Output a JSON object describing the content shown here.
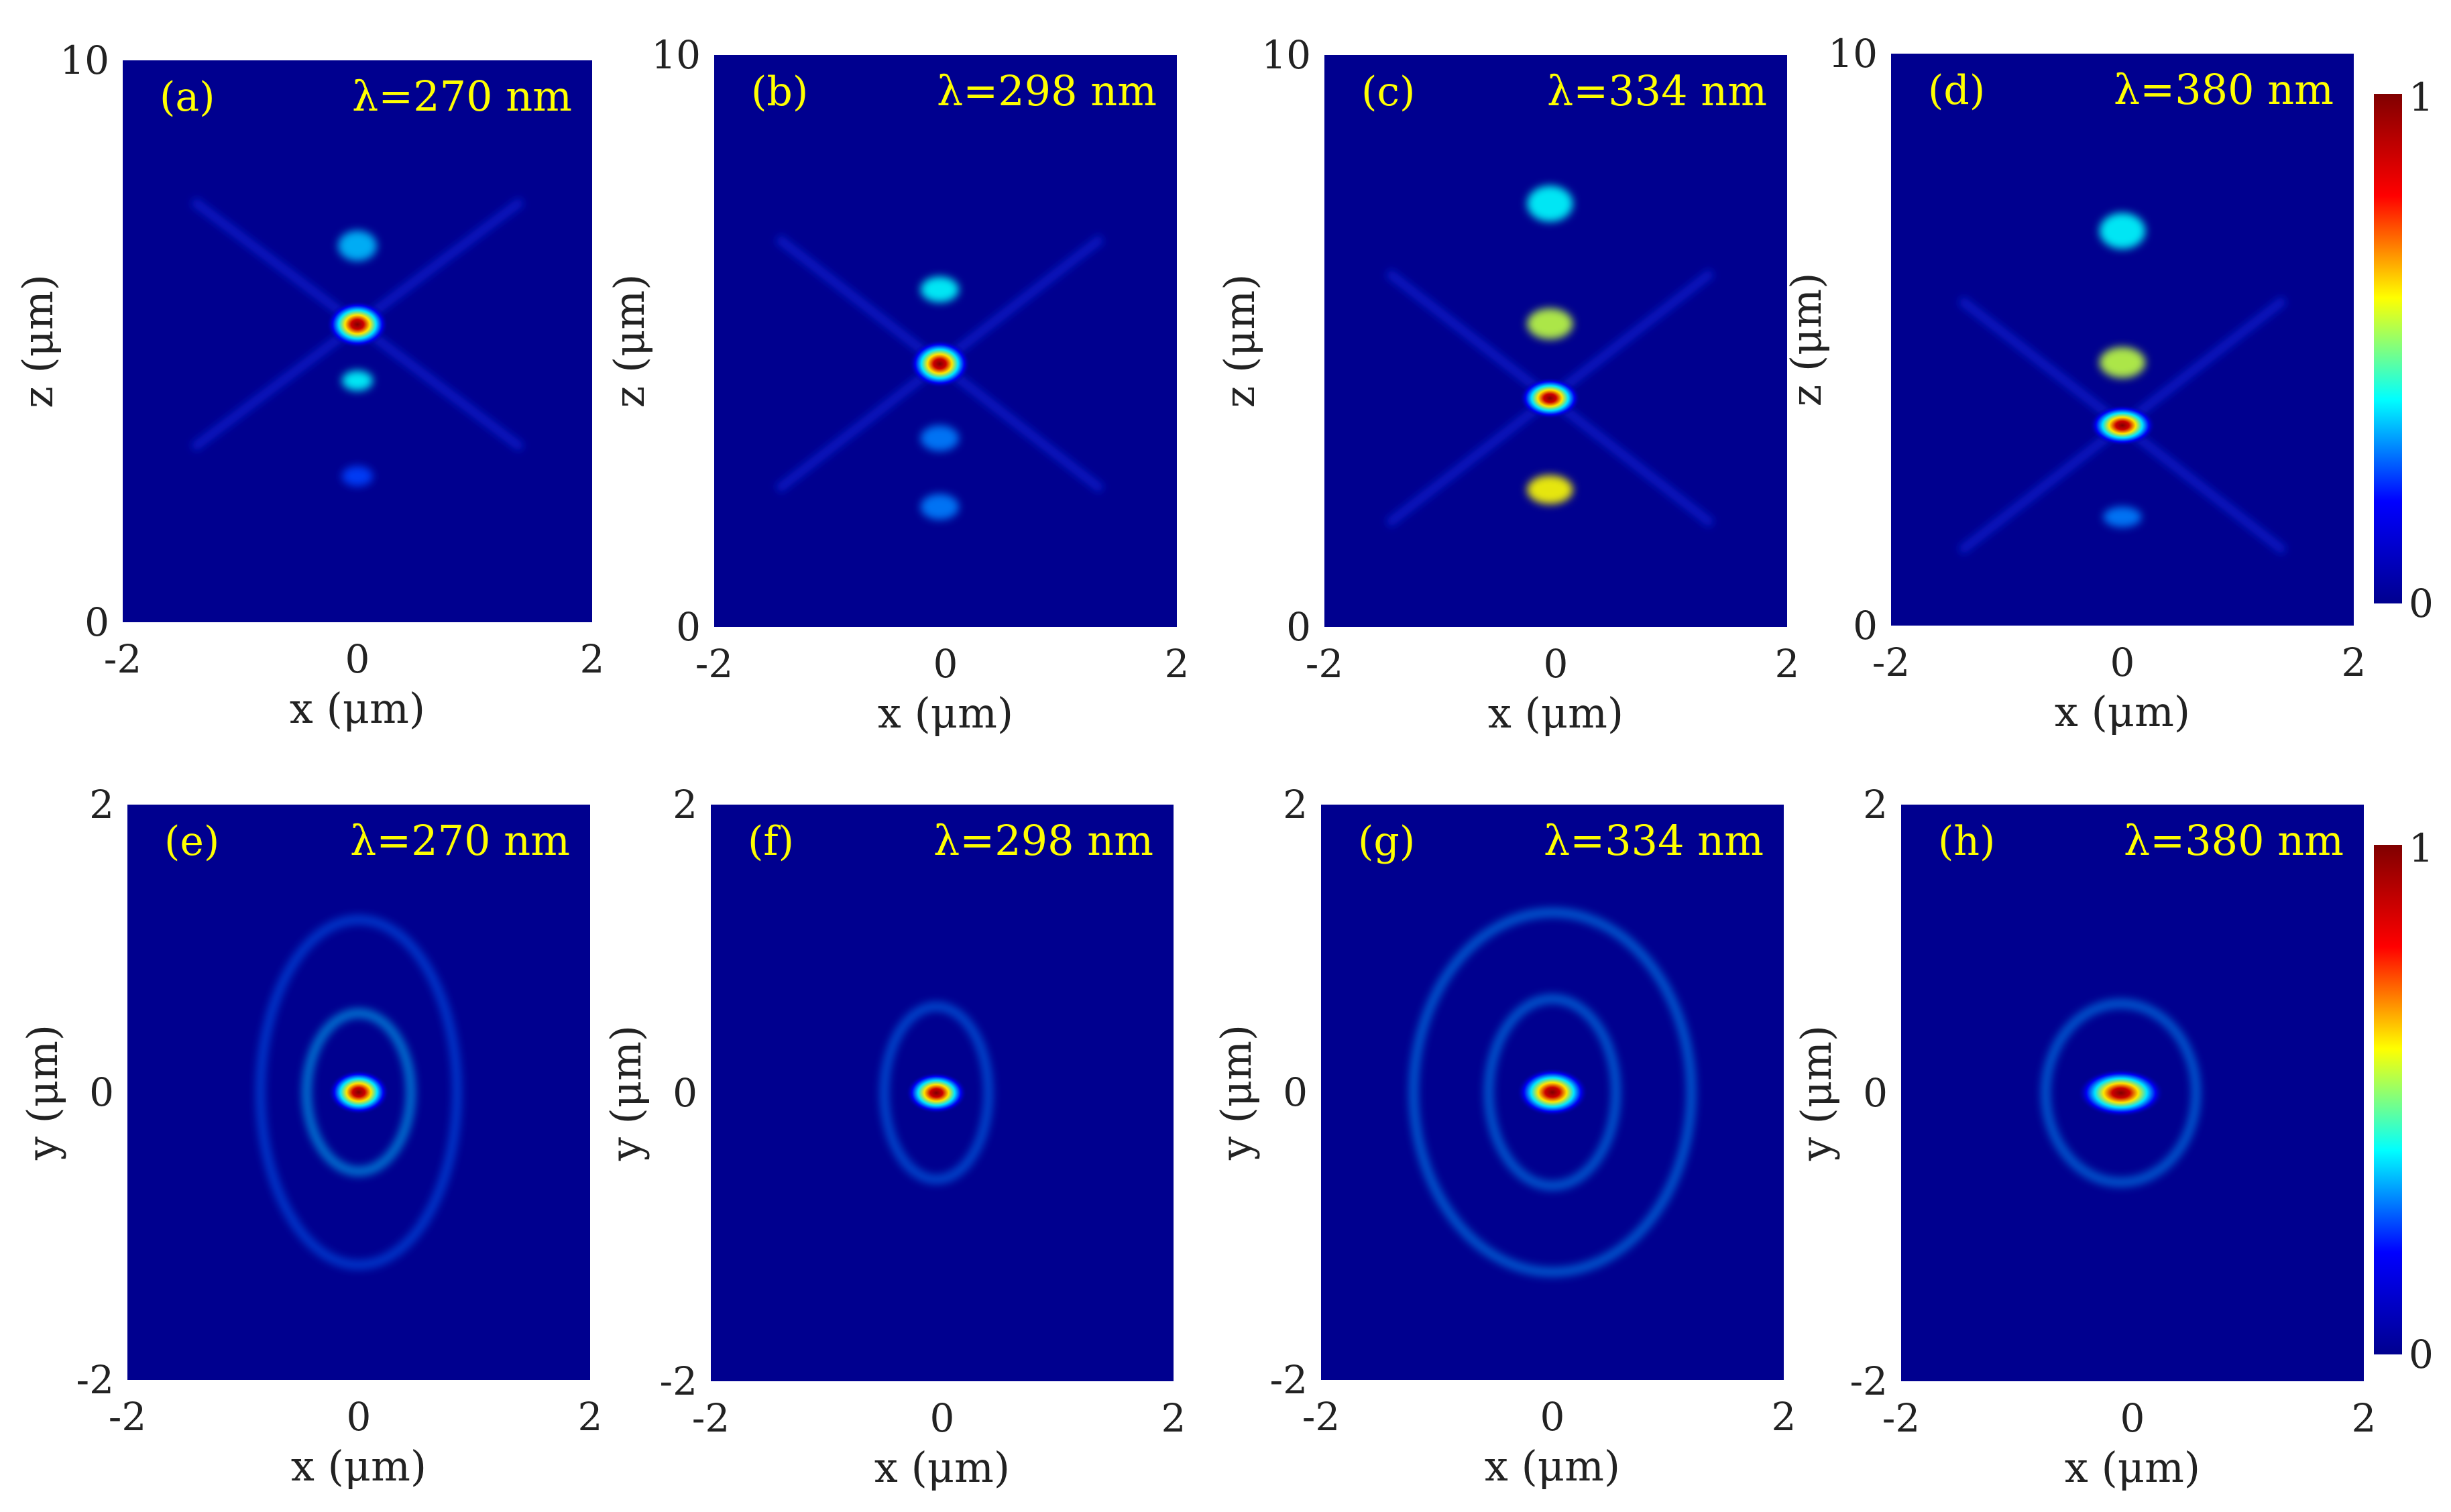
{
  "figure_title": "",
  "colormap": {
    "stops": [
      "#00008f",
      "#0000ff",
      "#00ffff",
      "#ffff00",
      "#ff0000",
      "#800000"
    ],
    "background_color": "#00008f",
    "label_color": "#ffff00"
  },
  "colorbars": [
    {
      "min_label": "0",
      "max_label": "1"
    },
    {
      "min_label": "0",
      "max_label": "1"
    }
  ],
  "chart_data": [
    {
      "type": "heatmap",
      "panel": "(a)",
      "wavelength_label": "λ=270 nm",
      "xlabel": "x (μm)",
      "ylabel": "z (μm)",
      "xlim": [
        -2,
        2
      ],
      "ylim": [
        0,
        10
      ],
      "xticks": [
        "-2",
        "0",
        "2"
      ],
      "yticks": [
        "0",
        "10"
      ],
      "peaks": [
        {
          "x": 0.0,
          "y": 5.3,
          "intensity": 1.0,
          "sx": 0.12,
          "sy": 0.35
        },
        {
          "x": 0.0,
          "y": 6.7,
          "intensity": 0.25,
          "sx": 0.1,
          "sy": 0.3
        },
        {
          "x": 0.0,
          "y": 4.3,
          "intensity": 0.3,
          "sx": 0.08,
          "sy": 0.2
        },
        {
          "x": 0.0,
          "y": 2.6,
          "intensity": 0.15,
          "sx": 0.08,
          "sy": 0.2
        }
      ],
      "rings": []
    },
    {
      "type": "heatmap",
      "panel": "(b)",
      "wavelength_label": "λ=298 nm",
      "xlabel": "x (μm)",
      "ylabel": "z (μm)",
      "xlim": [
        -2,
        2
      ],
      "ylim": [
        0,
        10
      ],
      "xticks": [
        "-2",
        "0",
        "2"
      ],
      "yticks": [
        "0",
        "10"
      ],
      "peaks": [
        {
          "x": -0.05,
          "y": 4.6,
          "intensity": 1.0,
          "sx": 0.12,
          "sy": 0.35
        },
        {
          "x": -0.05,
          "y": 5.9,
          "intensity": 0.3,
          "sx": 0.1,
          "sy": 0.25
        },
        {
          "x": -0.05,
          "y": 3.3,
          "intensity": 0.2,
          "sx": 0.1,
          "sy": 0.25
        },
        {
          "x": -0.05,
          "y": 2.1,
          "intensity": 0.2,
          "sx": 0.1,
          "sy": 0.25
        }
      ],
      "rings": []
    },
    {
      "type": "heatmap",
      "panel": "(c)",
      "wavelength_label": "λ=334 nm",
      "xlabel": "x (μm)",
      "ylabel": "z (μm)",
      "xlim": [
        -2,
        2
      ],
      "ylim": [
        0,
        10
      ],
      "xticks": [
        "-2",
        "0",
        "2"
      ],
      "yticks": [
        "0",
        "10"
      ],
      "peaks": [
        {
          "x": -0.05,
          "y": 4.0,
          "intensity": 1.0,
          "sx": 0.12,
          "sy": 0.3
        },
        {
          "x": -0.05,
          "y": 5.3,
          "intensity": 0.45,
          "sx": 0.12,
          "sy": 0.3
        },
        {
          "x": -0.05,
          "y": 7.4,
          "intensity": 0.3,
          "sx": 0.12,
          "sy": 0.35
        },
        {
          "x": -0.05,
          "y": 2.4,
          "intensity": 0.5,
          "sx": 0.12,
          "sy": 0.28
        }
      ],
      "rings": []
    },
    {
      "type": "heatmap",
      "panel": "(d)",
      "wavelength_label": "λ=380 nm",
      "xlabel": "x (μm)",
      "ylabel": "z (μm)",
      "xlim": [
        -2,
        2
      ],
      "ylim": [
        0,
        10
      ],
      "xticks": [
        "-2",
        "0",
        "2"
      ],
      "yticks": [
        "0",
        "10"
      ],
      "peaks": [
        {
          "x": 0.0,
          "y": 3.5,
          "intensity": 1.0,
          "sx": 0.13,
          "sy": 0.3
        },
        {
          "x": 0.0,
          "y": 4.6,
          "intensity": 0.45,
          "sx": 0.12,
          "sy": 0.3
        },
        {
          "x": 0.0,
          "y": 6.9,
          "intensity": 0.3,
          "sx": 0.12,
          "sy": 0.35
        },
        {
          "x": 0.0,
          "y": 1.9,
          "intensity": 0.2,
          "sx": 0.1,
          "sy": 0.2
        }
      ],
      "rings": []
    },
    {
      "type": "heatmap",
      "panel": "(e)",
      "wavelength_label": "λ=270 nm",
      "xlabel": "x (μm)",
      "ylabel": "y (μm)",
      "xlim": [
        -2,
        2
      ],
      "ylim": [
        -2,
        2
      ],
      "xticks": [
        "-2",
        "0",
        "2"
      ],
      "yticks": [
        "-2",
        "0",
        "2"
      ],
      "peaks": [
        {
          "x": 0.0,
          "y": 0.0,
          "intensity": 1.0,
          "sx": 0.12,
          "sy": 0.13
        }
      ],
      "rings": [
        {
          "rx": 0.45,
          "ry": 0.55,
          "intensity": 0.15
        },
        {
          "rx": 0.85,
          "ry": 1.2,
          "intensity": 0.08
        }
      ]
    },
    {
      "type": "heatmap",
      "panel": "(f)",
      "wavelength_label": "λ=298 nm",
      "xlabel": "x (μm)",
      "ylabel": "y (μm)",
      "xlim": [
        -2,
        2
      ],
      "ylim": [
        -2,
        2
      ],
      "xticks": [
        "-2",
        "0",
        "2"
      ],
      "yticks": [
        "-2",
        "0",
        "2"
      ],
      "peaks": [
        {
          "x": -0.05,
          "y": 0.0,
          "intensity": 1.0,
          "sx": 0.12,
          "sy": 0.12
        }
      ],
      "rings": [
        {
          "rx": 0.45,
          "ry": 0.6,
          "intensity": 0.1
        }
      ]
    },
    {
      "type": "heatmap",
      "panel": "(g)",
      "wavelength_label": "λ=334 nm",
      "xlabel": "x (μm)",
      "ylabel": "y (μm)",
      "xlim": [
        -2,
        2
      ],
      "ylim": [
        -2,
        2
      ],
      "xticks": [
        "-2",
        "0",
        "2"
      ],
      "yticks": [
        "-2",
        "0",
        "2"
      ],
      "peaks": [
        {
          "x": 0.0,
          "y": 0.0,
          "intensity": 1.0,
          "sx": 0.14,
          "sy": 0.14
        }
      ],
      "rings": [
        {
          "rx": 0.55,
          "ry": 0.65,
          "intensity": 0.12
        },
        {
          "rx": 1.2,
          "ry": 1.25,
          "intensity": 0.12
        }
      ]
    },
    {
      "type": "heatmap",
      "panel": "(h)",
      "wavelength_label": "λ=380 nm",
      "xlabel": "x (μm)",
      "ylabel": "y (μm)",
      "xlim": [
        -2,
        2
      ],
      "ylim": [
        -2,
        2
      ],
      "xticks": [
        "-2",
        "0",
        "2"
      ],
      "yticks": [
        "-2",
        "0",
        "2"
      ],
      "peaks": [
        {
          "x": -0.1,
          "y": 0.0,
          "intensity": 1.0,
          "sx": 0.17,
          "sy": 0.14
        }
      ],
      "rings": [
        {
          "rx": 0.65,
          "ry": 0.62,
          "intensity": 0.12
        }
      ]
    }
  ]
}
